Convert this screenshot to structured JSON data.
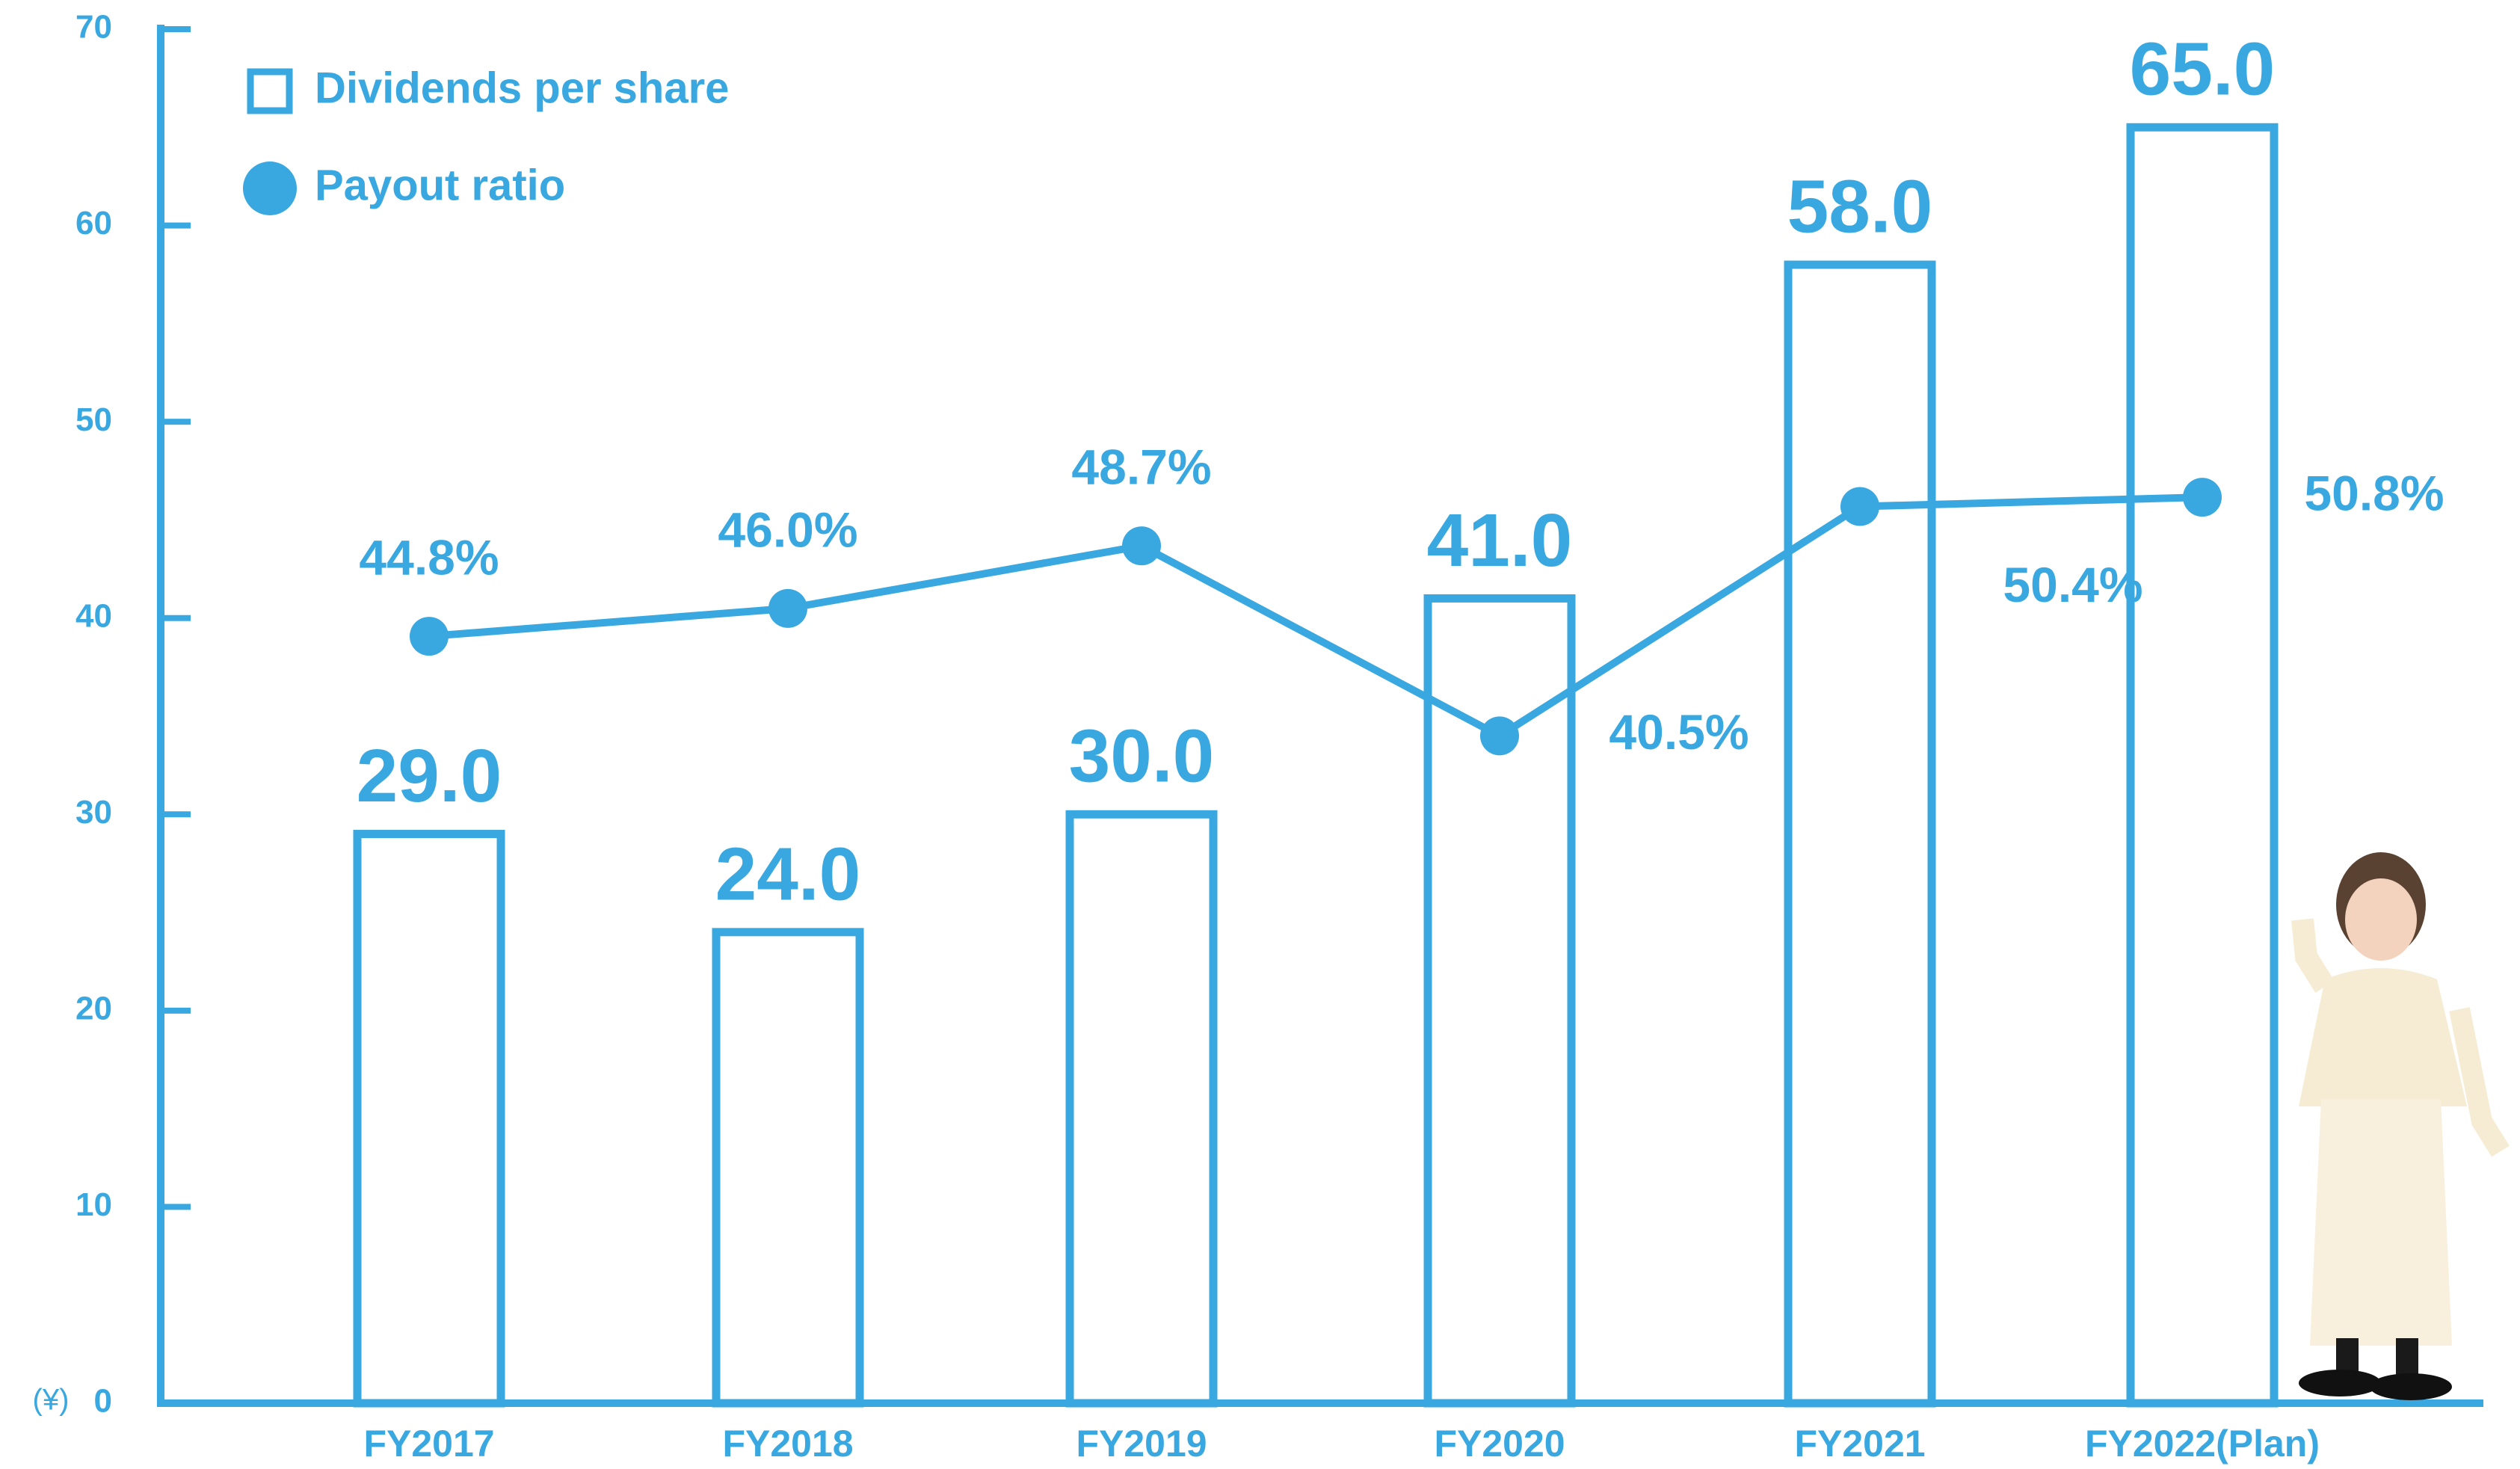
{
  "chart_data": {
    "type": "bar",
    "categories": [
      "FY2017",
      "FY2018",
      "FY2019",
      "FY2020",
      "FY2021",
      "FY2022(Plan)"
    ],
    "y_unit": "(¥)",
    "ylim": [
      0,
      70
    ],
    "yticks": [
      0,
      10,
      20,
      30,
      40,
      50,
      60,
      70
    ],
    "y2lim": [
      11.7,
      71
    ],
    "legend": "top-left",
    "series": [
      {
        "name": "Dividends per share",
        "type": "bar",
        "color": "#3aa8e0",
        "values": [
          29,
          24,
          30,
          41,
          58,
          65
        ],
        "value_labels": [
          "29.0",
          "24.0",
          "30.0",
          "41.0",
          "58.0",
          "65.0"
        ]
      },
      {
        "name": "Payout ratio",
        "type": "line",
        "axis": "y2",
        "color": "#3aa8e0",
        "values": [
          44.8,
          46.0,
          48.7,
          40.5,
          50.4,
          50.8
        ],
        "value_labels": [
          "44.8%",
          "46.0%",
          "48.7%",
          "40.5%",
          "50.4%",
          "50.8%"
        ]
      }
    ]
  }
}
